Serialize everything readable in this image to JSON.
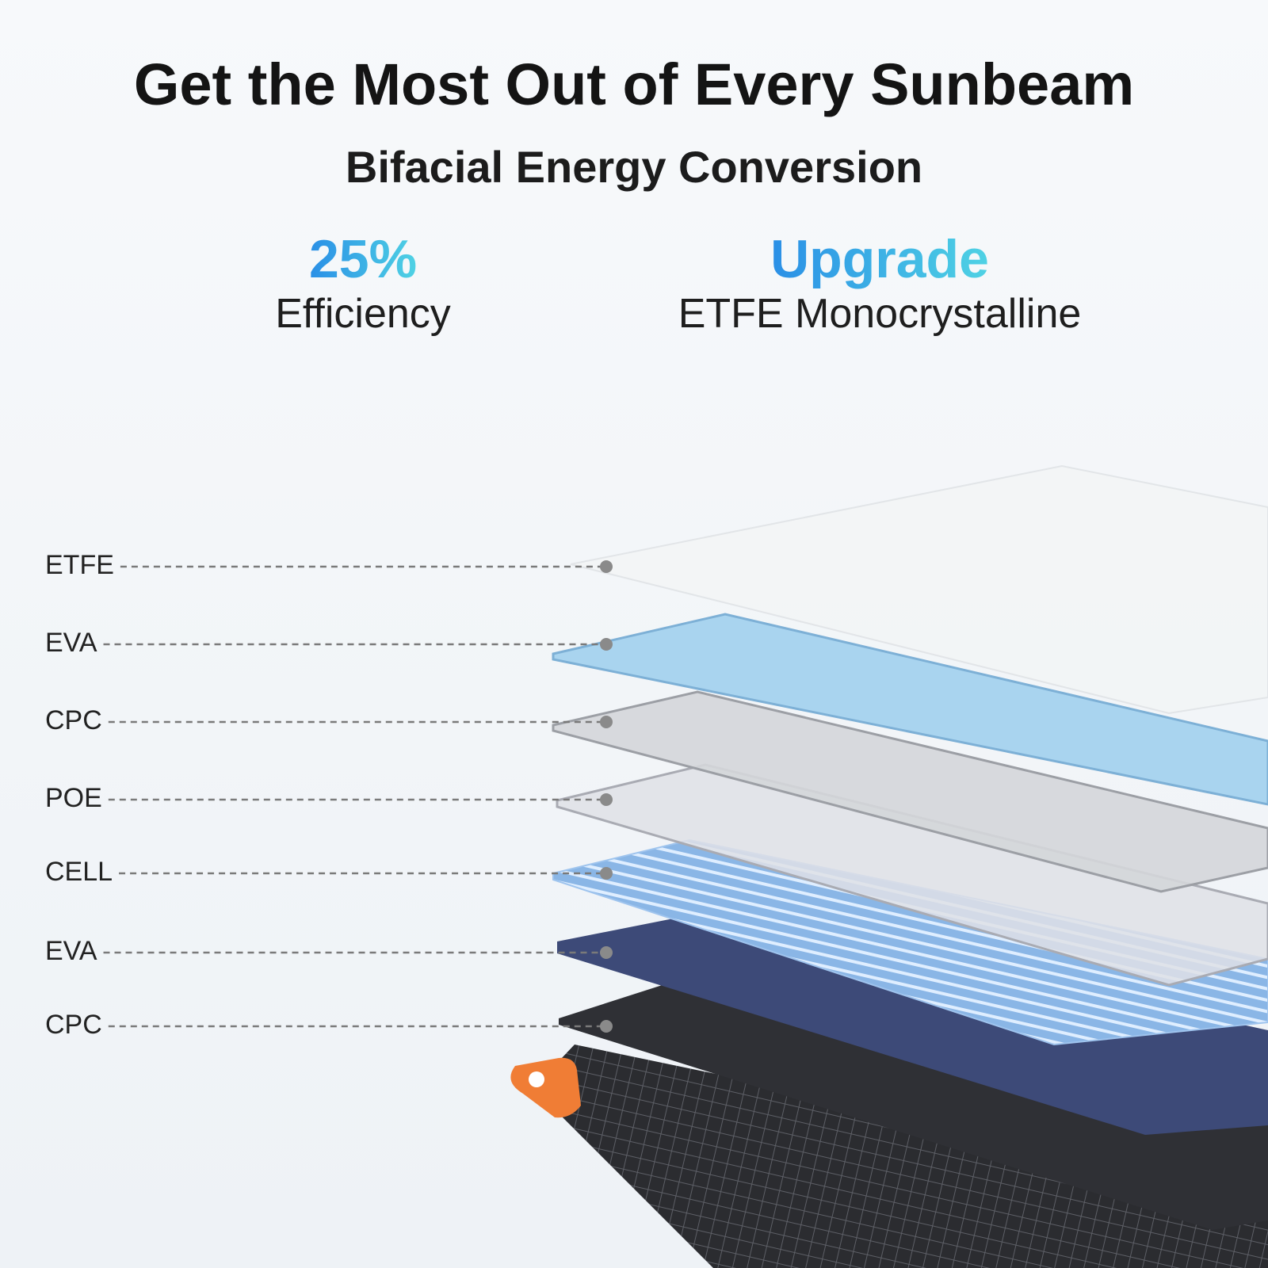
{
  "header": {
    "title": "Get the Most Out of Every Sunbeam",
    "subtitle": "Bifacial Energy Conversion"
  },
  "features": [
    {
      "value": "25%",
      "label": "Efficiency"
    },
    {
      "value": "Upgrade",
      "label": "ETFE Monocrystalline"
    }
  ],
  "layers": [
    "ETFE",
    "EVA",
    "CPC",
    "POE",
    "CELL",
    "EVA",
    "CPC"
  ]
}
